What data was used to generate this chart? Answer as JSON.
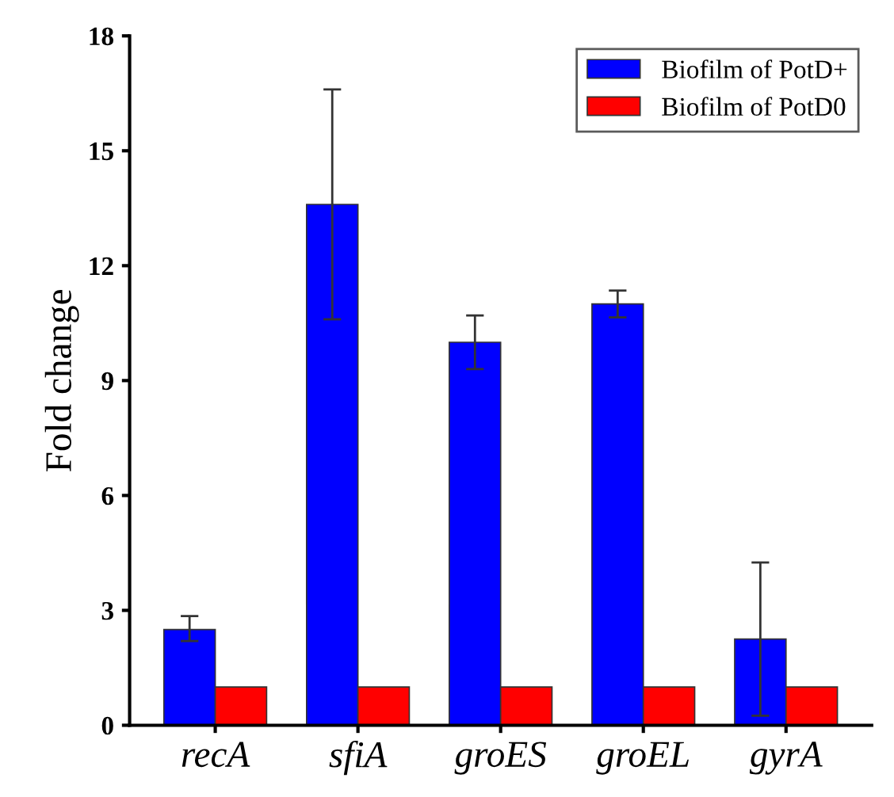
{
  "chart_data": {
    "type": "bar",
    "ylabel": "Fold change",
    "categories": [
      "recA",
      "sfiA",
      "groES",
      "groEL",
      "gyrA"
    ],
    "series": [
      {
        "name": "Biofilm of PotD+",
        "color": "#0000ff",
        "values": [
          2.5,
          13.6,
          10.0,
          11.0,
          2.25
        ],
        "errors": [
          [
            2.2,
            2.85
          ],
          [
            10.6,
            16.6
          ],
          [
            9.3,
            10.7
          ],
          [
            10.65,
            11.35
          ],
          [
            0.25,
            4.25
          ]
        ]
      },
      {
        "name": "Biofilm of PotD0",
        "color": "#ff0000",
        "values": [
          1,
          1,
          1,
          1,
          1
        ]
      }
    ],
    "ylim": [
      0,
      18
    ],
    "yticks": [
      0,
      3,
      6,
      9,
      12,
      15,
      18
    ],
    "legend": "top right",
    "grid": false
  }
}
